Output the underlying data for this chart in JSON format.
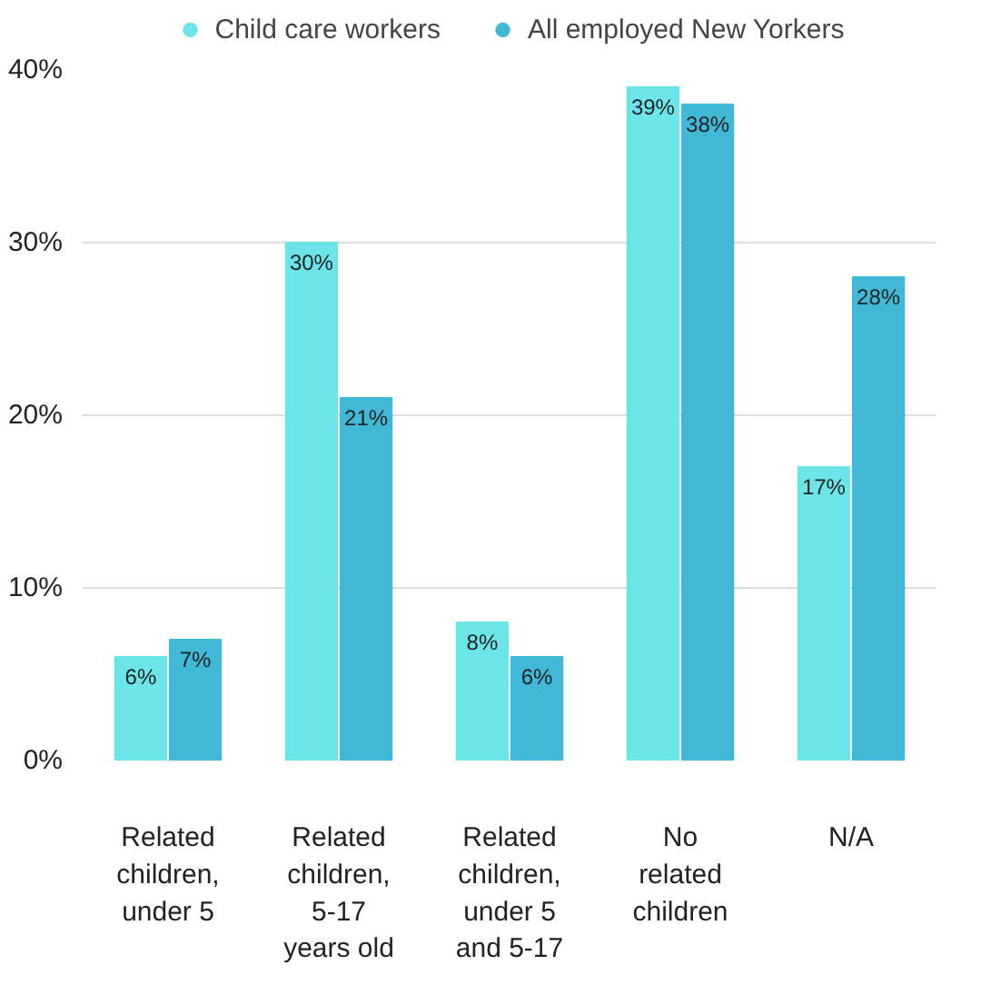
{
  "chart_data": {
    "type": "bar",
    "categories": [
      "Related children, under 5",
      "Related children, 5-17 years old",
      "Related children, under 5 and 5-17",
      "No related children",
      "N/A"
    ],
    "series": [
      {
        "name": "Child care workers",
        "color": "#6ce5e8",
        "values": [
          6,
          30,
          8,
          39,
          17
        ],
        "value_labels": [
          "6%",
          "30%",
          "8%",
          "39%",
          "17%"
        ]
      },
      {
        "name": "All employed New Yorkers",
        "color": "#41b8d5",
        "values": [
          7,
          21,
          6,
          38,
          28
        ],
        "value_labels": [
          "7%",
          "21%",
          "6%",
          "38%",
          "28%"
        ]
      }
    ],
    "ylim": [
      0,
      40
    ],
    "yticks": [
      {
        "value": 0,
        "label": "0%"
      },
      {
        "value": 10,
        "label": "10%"
      },
      {
        "value": 20,
        "label": "20%"
      },
      {
        "value": 30,
        "label": "30%"
      },
      {
        "value": 40,
        "label": "40%"
      }
    ],
    "grid": "y",
    "legend": "top"
  }
}
